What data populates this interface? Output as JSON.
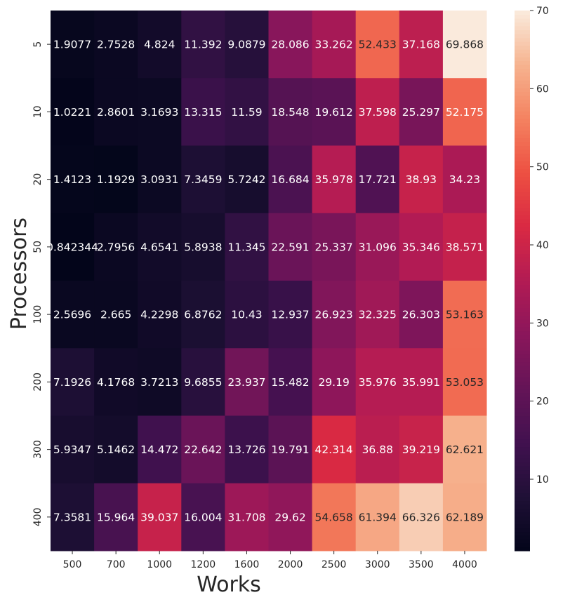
{
  "chart_data": {
    "type": "heatmap",
    "xlabel": "Works",
    "ylabel": "Processors",
    "x_categories": [
      "500",
      "700",
      "1000",
      "1200",
      "1600",
      "2000",
      "2500",
      "3000",
      "3500",
      "4000"
    ],
    "y_categories": [
      "5",
      "10",
      "20",
      "50",
      "100",
      "200",
      "300",
      "400"
    ],
    "values": [
      [
        "1.9077",
        "2.7528",
        "4.824",
        "11.392",
        "9.0879",
        "28.086",
        "33.262",
        "52.433",
        "37.168",
        "69.868"
      ],
      [
        "1.0221",
        "2.8601",
        "3.1693",
        "13.315",
        "11.59",
        "18.548",
        "19.612",
        "37.598",
        "25.297",
        "52.175"
      ],
      [
        "1.4123",
        "1.1929",
        "3.0931",
        "7.3459",
        "5.7242",
        "16.684",
        "35.978",
        "17.721",
        "38.93",
        "34.23"
      ],
      [
        "0.842344",
        "2.7956",
        "4.6541",
        "5.8938",
        "11.345",
        "22.591",
        "25.337",
        "31.096",
        "35.346",
        "38.571"
      ],
      [
        "2.5696",
        "2.665",
        "4.2298",
        "6.8762",
        "10.43",
        "12.937",
        "26.923",
        "32.325",
        "26.303",
        "53.163"
      ],
      [
        "7.1926",
        "4.1768",
        "3.7213",
        "9.6855",
        "23.937",
        "15.482",
        "29.19",
        "35.976",
        "35.991",
        "53.053"
      ],
      [
        "5.9347",
        "5.1462",
        "14.472",
        "22.642",
        "13.726",
        "19.791",
        "42.314",
        "36.88",
        "39.219",
        "62.621"
      ],
      [
        "7.3581",
        "15.964",
        "39.037",
        "16.004",
        "31.708",
        "29.62",
        "54.658",
        "61.394",
        "66.326",
        "62.189"
      ]
    ],
    "colorbar": {
      "min": 0.84,
      "max": 70,
      "ticks": [
        "10",
        "20",
        "30",
        "40",
        "50",
        "60",
        "70"
      ],
      "colormap": "rocket"
    }
  }
}
